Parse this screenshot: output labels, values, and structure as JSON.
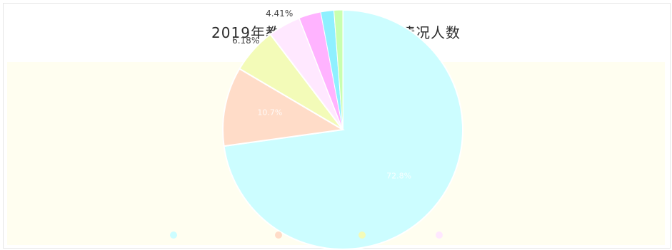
{
  "chart_data": {
    "type": "pie",
    "title": "2019年教职工年龄结构分布情况人数",
    "slices": [
      {
        "label": "",
        "percent": 72.8,
        "display": "72.8%",
        "color": "#ccfdff"
      },
      {
        "label": "",
        "percent": 10.7,
        "display": "10.7%",
        "color": "#ffdcc8"
      },
      {
        "label": "",
        "percent": 6.18,
        "display": "6.18%",
        "color": "#f3fbb8"
      },
      {
        "label": "",
        "percent": 4.41,
        "display": "4.41%",
        "color": "#ffe8ff"
      }
    ],
    "legend_placement": "bottom"
  }
}
